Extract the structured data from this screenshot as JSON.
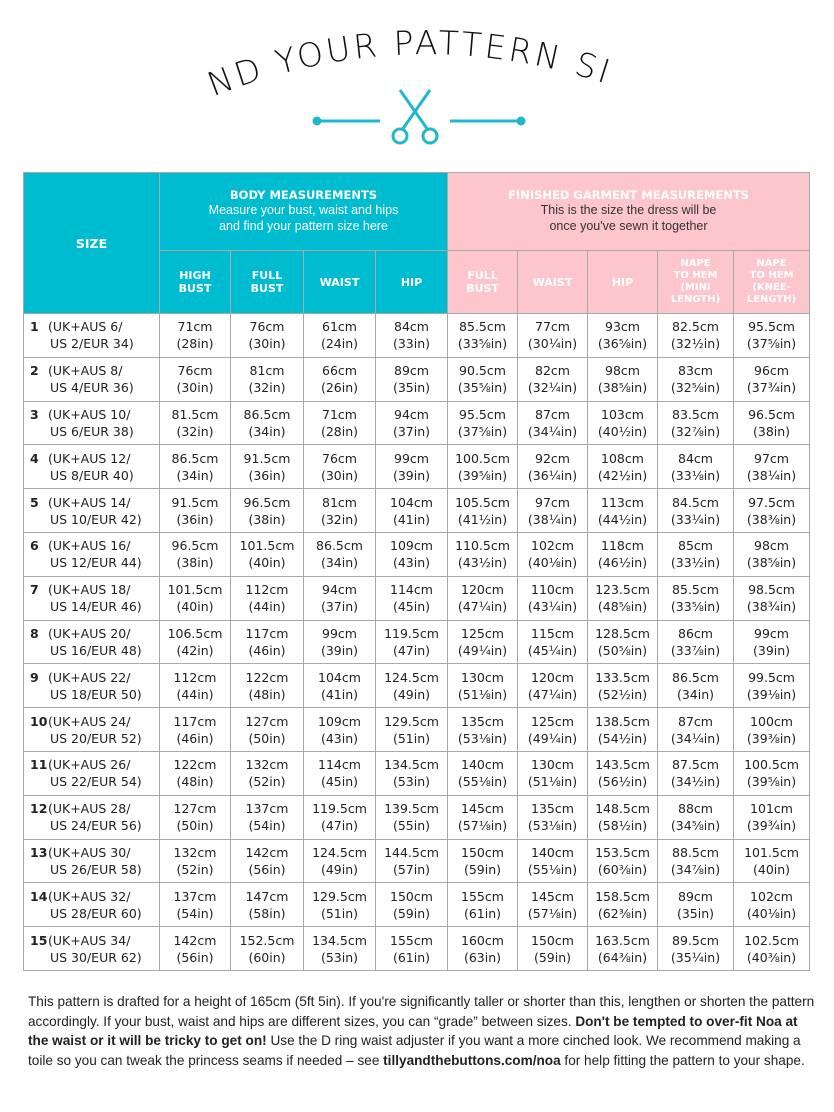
{
  "title": "FIND YOUR PATTERN SIZE",
  "colors": {
    "body_header": "#00bcd1",
    "finished_header": "#fdc6cc",
    "accent": "#1fb8cc"
  },
  "icons": [
    "scissors-icon"
  ],
  "header": {
    "size": "SIZE",
    "body": {
      "title": "BODY MEASUREMENTS",
      "sub1": "Measure your bust, waist and hips",
      "sub2": "and find your pattern size here",
      "cols": [
        [
          "HIGH",
          "BUST"
        ],
        [
          "FULL",
          "BUST"
        ],
        [
          "WAIST"
        ],
        [
          "HIP"
        ]
      ]
    },
    "finished": {
      "title": "FINISHED GARMENT MEASUREMENTS",
      "sub1": "This is the size the dress will be",
      "sub2": "once you've sewn it together",
      "cols": [
        [
          "FULL",
          "BUST"
        ],
        [
          "WAIST"
        ],
        [
          "HIP"
        ],
        [
          "NAPE",
          "TO HEM",
          "(MINI",
          "LENGTH)"
        ],
        [
          "NAPE",
          "TO HEM",
          "(KNEE-",
          "LENGTH)"
        ]
      ]
    }
  },
  "rows": [
    {
      "n": "1",
      "l1": "(UK+AUS 6/",
      "l2": "US 2/EUR 34)",
      "v": [
        [
          "71cm",
          "(28in)"
        ],
        [
          "76cm",
          "(30in)"
        ],
        [
          "61cm",
          "(24in)"
        ],
        [
          "84cm",
          "(33in)"
        ],
        [
          "85.5cm",
          "(33⅝in)"
        ],
        [
          "77cm",
          "(30¼in)"
        ],
        [
          "93cm",
          "(36⅝in)"
        ],
        [
          "82.5cm",
          "(32½in)"
        ],
        [
          "95.5cm",
          "(37⅝in)"
        ]
      ]
    },
    {
      "n": "2",
      "l1": "(UK+AUS 8/",
      "l2": "US 4/EUR 36)",
      "v": [
        [
          "76cm",
          "(30in)"
        ],
        [
          "81cm",
          "(32in)"
        ],
        [
          "66cm",
          "(26in)"
        ],
        [
          "89cm",
          "(35in)"
        ],
        [
          "90.5cm",
          "(35⅝in)"
        ],
        [
          "82cm",
          "(32¼in)"
        ],
        [
          "98cm",
          "(38⅝in)"
        ],
        [
          "83cm",
          "(32⅝in)"
        ],
        [
          "96cm",
          "(37¾in)"
        ]
      ]
    },
    {
      "n": "3",
      "l1": "(UK+AUS 10/",
      "l2": "US 6/EUR 38)",
      "v": [
        [
          "81.5cm",
          "(32in)"
        ],
        [
          "86.5cm",
          "(34in)"
        ],
        [
          "71cm",
          "(28in)"
        ],
        [
          "94cm",
          "(37in)"
        ],
        [
          "95.5cm",
          "(37⅝in)"
        ],
        [
          "87cm",
          "(34¼in)"
        ],
        [
          "103cm",
          "(40½in)"
        ],
        [
          "83.5cm",
          "(32⅞in)"
        ],
        [
          "96.5cm",
          "(38in)"
        ]
      ]
    },
    {
      "n": "4",
      "l1": "(UK+AUS 12/",
      "l2": "US 8/EUR 40)",
      "v": [
        [
          "86.5cm",
          "(34in)"
        ],
        [
          "91.5cm",
          "(36in)"
        ],
        [
          "76cm",
          "(30in)"
        ],
        [
          "99cm",
          "(39in)"
        ],
        [
          "100.5cm",
          "(39⅝in)"
        ],
        [
          "92cm",
          "(36¼in)"
        ],
        [
          "108cm",
          "(42½in)"
        ],
        [
          "84cm",
          "(33⅛in)"
        ],
        [
          "97cm",
          "(38¼in)"
        ]
      ]
    },
    {
      "n": "5",
      "l1": "(UK+AUS 14/",
      "l2": "US 10/EUR 42)",
      "v": [
        [
          "91.5cm",
          "(36in)"
        ],
        [
          "96.5cm",
          "(38in)"
        ],
        [
          "81cm",
          "(32in)"
        ],
        [
          "104cm",
          "(41in)"
        ],
        [
          "105.5cm",
          "(41½in)"
        ],
        [
          "97cm",
          "(38¼in)"
        ],
        [
          "113cm",
          "(44½in)"
        ],
        [
          "84.5cm",
          "(33¼in)"
        ],
        [
          "97.5cm",
          "(38⅜in)"
        ]
      ]
    },
    {
      "n": "6",
      "l1": "(UK+AUS 16/",
      "l2": "US 12/EUR 44)",
      "v": [
        [
          "96.5cm",
          "(38in)"
        ],
        [
          "101.5cm",
          "(40in)"
        ],
        [
          "86.5cm",
          "(34in)"
        ],
        [
          "109cm",
          "(43in)"
        ],
        [
          "110.5cm",
          "(43½in)"
        ],
        [
          "102cm",
          "(40⅛in)"
        ],
        [
          "118cm",
          "(46½in)"
        ],
        [
          "85cm",
          "(33½in)"
        ],
        [
          "98cm",
          "(38⅝in)"
        ]
      ]
    },
    {
      "n": "7",
      "l1": "(UK+AUS 18/",
      "l2": "US 14/EUR 46)",
      "v": [
        [
          "101.5cm",
          "(40in)"
        ],
        [
          "112cm",
          "(44in)"
        ],
        [
          "94cm",
          "(37in)"
        ],
        [
          "114cm",
          "(45in)"
        ],
        [
          "120cm",
          "(47¼in)"
        ],
        [
          "110cm",
          "(43¼in)"
        ],
        [
          "123.5cm",
          "(48⅝in)"
        ],
        [
          "85.5cm",
          "(33⅝in)"
        ],
        [
          "98.5cm",
          "(38¾in)"
        ]
      ]
    },
    {
      "n": "8",
      "l1": "(UK+AUS 20/",
      "l2": "US 16/EUR 48)",
      "v": [
        [
          "106.5cm",
          "(42in)"
        ],
        [
          "117cm",
          "(46in)"
        ],
        [
          "99cm",
          "(39in)"
        ],
        [
          "119.5cm",
          "(47in)"
        ],
        [
          "125cm",
          "(49¼in)"
        ],
        [
          "115cm",
          "(45¼in)"
        ],
        [
          "128.5cm",
          "(50⅝in)"
        ],
        [
          "86cm",
          "(33⅞in)"
        ],
        [
          "99cm",
          "(39in)"
        ]
      ]
    },
    {
      "n": "9",
      "l1": "(UK+AUS 22/",
      "l2": "US 18/EUR 50)",
      "v": [
        [
          "112cm",
          "(44in)"
        ],
        [
          "122cm",
          "(48in)"
        ],
        [
          "104cm",
          "(41in)"
        ],
        [
          "124.5cm",
          "(49in)"
        ],
        [
          "130cm",
          "(51⅛in)"
        ],
        [
          "120cm",
          "(47¼in)"
        ],
        [
          "133.5cm",
          "(52½in)"
        ],
        [
          "86.5cm",
          "(34in)"
        ],
        [
          "99.5cm",
          "(39⅛in)"
        ]
      ]
    },
    {
      "n": "10",
      "l1": "(UK+AUS 24/",
      "l2": "US 20/EUR 52)",
      "v": [
        [
          "117cm",
          "(46in)"
        ],
        [
          "127cm",
          "(50in)"
        ],
        [
          "109cm",
          "(43in)"
        ],
        [
          "129.5cm",
          "(51in)"
        ],
        [
          "135cm",
          "(53⅛in)"
        ],
        [
          "125cm",
          "(49¼in)"
        ],
        [
          "138.5cm",
          "(54½in)"
        ],
        [
          "87cm",
          "(34¼in)"
        ],
        [
          "100cm",
          "(39⅜in)"
        ]
      ]
    },
    {
      "n": "11",
      "l1": "(UK+AUS 26/",
      "l2": "US 22/EUR 54)",
      "v": [
        [
          "122cm",
          "(48in)"
        ],
        [
          "132cm",
          "(52in)"
        ],
        [
          "114cm",
          "(45in)"
        ],
        [
          "134.5cm",
          "(53in)"
        ],
        [
          "140cm",
          "(55⅛in)"
        ],
        [
          "130cm",
          "(51⅛in)"
        ],
        [
          "143.5cm",
          "(56½in)"
        ],
        [
          "87.5cm",
          "(34½in)"
        ],
        [
          "100.5cm",
          "(39⅝in)"
        ]
      ]
    },
    {
      "n": "12",
      "l1": "(UK+AUS 28/",
      "l2": "US 24/EUR 56)",
      "v": [
        [
          "127cm",
          "(50in)"
        ],
        [
          "137cm",
          "(54in)"
        ],
        [
          "119.5cm",
          "(47in)"
        ],
        [
          "139.5cm",
          "(55in)"
        ],
        [
          "145cm",
          "(57⅛in)"
        ],
        [
          "135cm",
          "(53⅛in)"
        ],
        [
          "148.5cm",
          "(58½in)"
        ],
        [
          "88cm",
          "(34⅝in)"
        ],
        [
          "101cm",
          "(39¾in)"
        ]
      ]
    },
    {
      "n": "13",
      "l1": "(UK+AUS 30/",
      "l2": "US 26/EUR 58)",
      "v": [
        [
          "132cm",
          "(52in)"
        ],
        [
          "142cm",
          "(56in)"
        ],
        [
          "124.5cm",
          "(49in)"
        ],
        [
          "144.5cm",
          "(57in)"
        ],
        [
          "150cm",
          "(59in)"
        ],
        [
          "140cm",
          "(55⅛in)"
        ],
        [
          "153.5cm",
          "(60⅜in)"
        ],
        [
          "88.5cm",
          "(34⅞in)"
        ],
        [
          "101.5cm",
          "(40in)"
        ]
      ]
    },
    {
      "n": "14",
      "l1": "(UK+AUS 32/",
      "l2": "US 28/EUR 60)",
      "v": [
        [
          "137cm",
          "(54in)"
        ],
        [
          "147cm",
          "(58in)"
        ],
        [
          "129.5cm",
          "(51in)"
        ],
        [
          "150cm",
          "(59in)"
        ],
        [
          "155cm",
          "(61in)"
        ],
        [
          "145cm",
          "(57⅛in)"
        ],
        [
          "158.5cm",
          "(62⅜in)"
        ],
        [
          "89cm",
          "(35in)"
        ],
        [
          "102cm",
          "(40⅛in)"
        ]
      ]
    },
    {
      "n": "15",
      "l1": "(UK+AUS 34/",
      "l2": "US 30/EUR 62)",
      "v": [
        [
          "142cm",
          "(56in)"
        ],
        [
          "152.5cm",
          "(60in)"
        ],
        [
          "134.5cm",
          "(53in)"
        ],
        [
          "155cm",
          "(61in)"
        ],
        [
          "160cm",
          "(63in)"
        ],
        [
          "150cm",
          "(59in)"
        ],
        [
          "163.5cm",
          "(64⅜in)"
        ],
        [
          "89.5cm",
          "(35¼in)"
        ],
        [
          "102.5cm",
          "(40⅜in)"
        ]
      ]
    }
  ],
  "footer": {
    "p1": "This pattern is drafted for a height of 165cm (5ft 5in). If you're significantly taller or shorter than this, lengthen or shorten the pattern accordingly. If your bust, waist and hips are different sizes, you can “grade” between sizes. ",
    "bold1": "Don't be tempted to over-fit Noa at the waist or it will be tricky to get on!",
    "p2": " Use the D ring waist adjuster if you want a more cinched look. We recommend making a toile so you can tweak the princess seams if needed – see ",
    "link": "tillyandthebuttons.com/noa",
    "p3": " for help fitting the pattern to your shape."
  }
}
